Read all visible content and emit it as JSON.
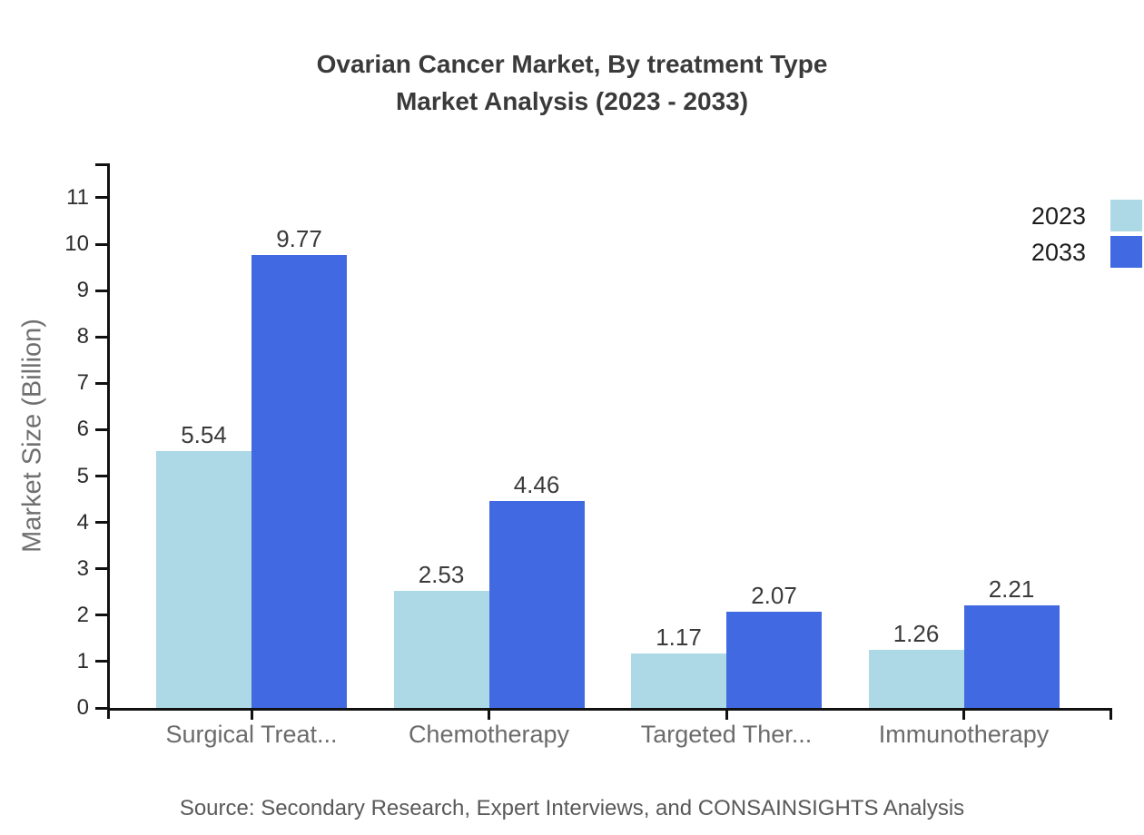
{
  "title": {
    "line1": "Ovarian Cancer Market, By treatment Type",
    "line2": "Market Analysis (2023 - 2033)"
  },
  "source": "Source: Secondary Research, Expert Interviews, and CONSAINSIGHTS Analysis",
  "legend": {
    "items": [
      {
        "label": "2023",
        "color": "#ADD8E6"
      },
      {
        "label": "2033",
        "color": "#4169E1"
      }
    ]
  },
  "chart_data": {
    "type": "bar",
    "title": "Ovarian Cancer Market, By treatment Type Market Analysis (2023 - 2033)",
    "categories": [
      "Surgical Treat...",
      "Chemotherapy",
      "Targeted Ther...",
      "Immunotherapy"
    ],
    "series": [
      {
        "name": "2023",
        "color": "#ADD8E6",
        "values": [
          5.54,
          2.53,
          1.17,
          1.26
        ]
      },
      {
        "name": "2033",
        "color": "#4169E1",
        "values": [
          9.77,
          4.46,
          2.07,
          2.21
        ]
      }
    ],
    "xlabel": "",
    "ylabel": "Market Size (Billion)",
    "yticks": [
      0,
      1,
      2,
      3,
      4,
      5,
      6,
      7,
      8,
      9,
      10,
      11
    ],
    "ylim": [
      0,
      11.75
    ],
    "grid": false,
    "value_labels": true,
    "legend_position": "top-right",
    "axis_color": "#111111",
    "tick_label_color": "#2b2b2b",
    "category_label_color": "#6b6b6b",
    "value_label_color": "#3a3a3a"
  }
}
